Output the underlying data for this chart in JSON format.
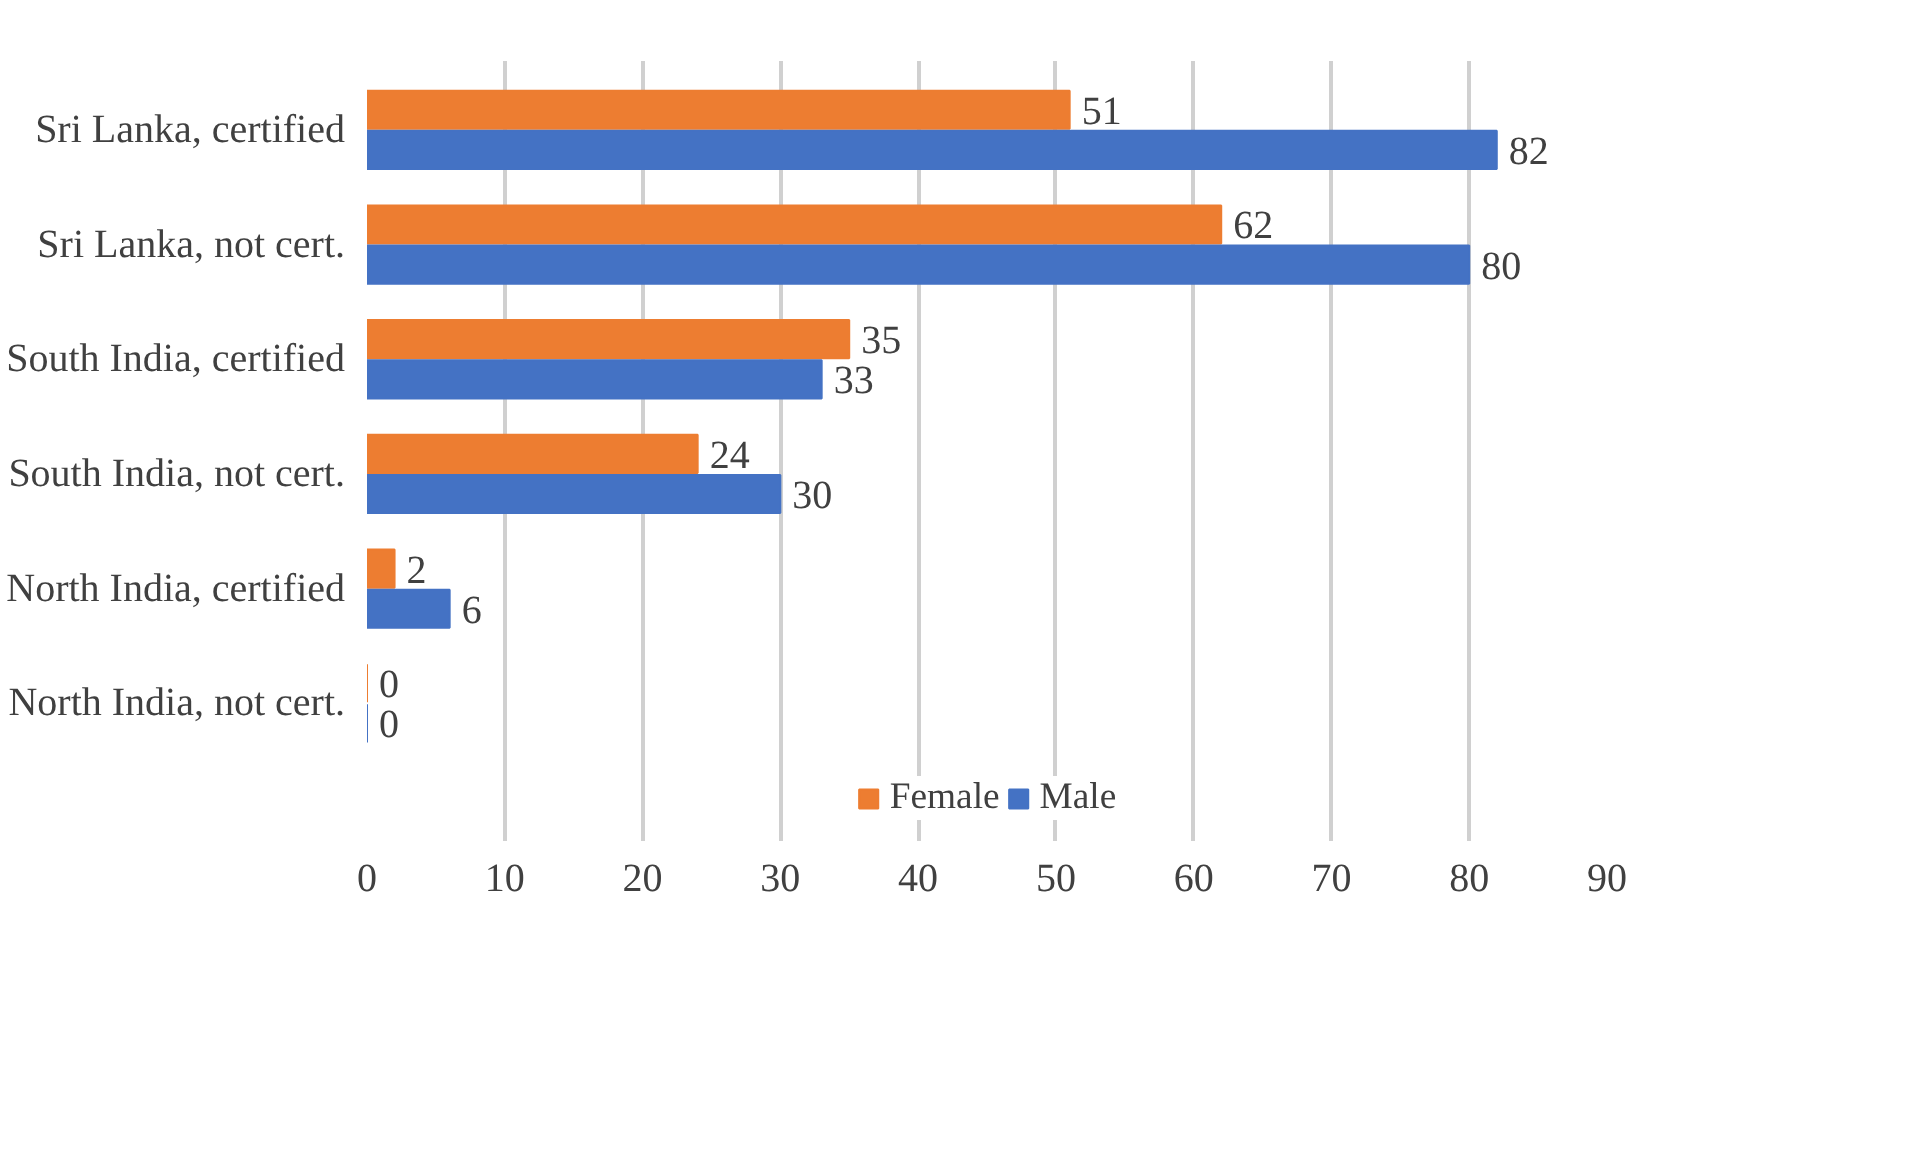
{
  "chart_data": {
    "type": "bar",
    "orientation": "horizontal",
    "categories": [
      "Sri Lanka, certified",
      "Sri Lanka, not cert.",
      "South India, certified",
      "South India, not cert.",
      "North India, certified",
      "North India, not cert."
    ],
    "series": [
      {
        "name": "Female",
        "color": "#ed7d31",
        "values": [
          51,
          62,
          35,
          24,
          2,
          0
        ]
      },
      {
        "name": "Male",
        "color": "#4472c4",
        "values": [
          82,
          80,
          33,
          30,
          6,
          0
        ]
      }
    ],
    "xlim": [
      0,
      90
    ],
    "xticks": [
      0,
      10,
      20,
      30,
      40,
      50,
      60,
      70,
      80,
      90
    ],
    "grid": "x",
    "legend": "bottom",
    "data_labels": true
  }
}
